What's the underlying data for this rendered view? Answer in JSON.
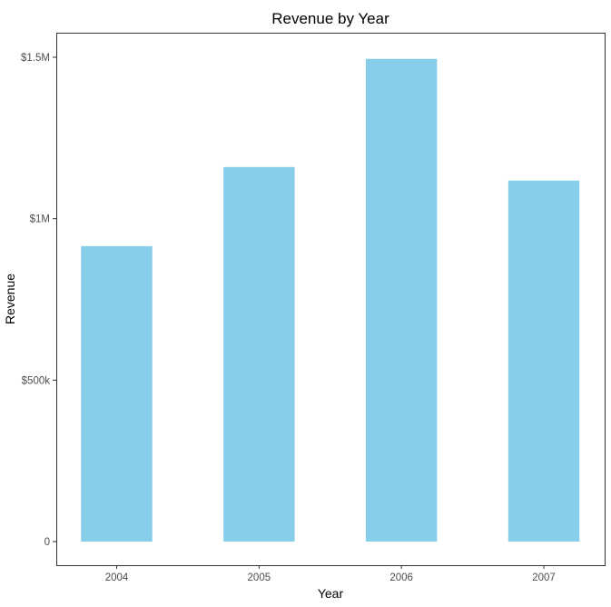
{
  "chart_data": {
    "type": "bar",
    "title": "Revenue by Year",
    "xlabel": "Year",
    "ylabel": "Revenue",
    "categories": [
      "2004",
      "2005",
      "2006",
      "2007"
    ],
    "values": [
      915000,
      1160000,
      1495000,
      1118000
    ],
    "ylim": [
      0,
      1500000
    ],
    "yticks": [
      {
        "value": 0,
        "label": "0"
      },
      {
        "value": 500000,
        "label": "$500k"
      },
      {
        "value": 1000000,
        "label": "$1M"
      },
      {
        "value": 1500000,
        "label": "$1.5M"
      }
    ],
    "bar_color": "#87CEEB",
    "grid": false,
    "legend": "none"
  }
}
